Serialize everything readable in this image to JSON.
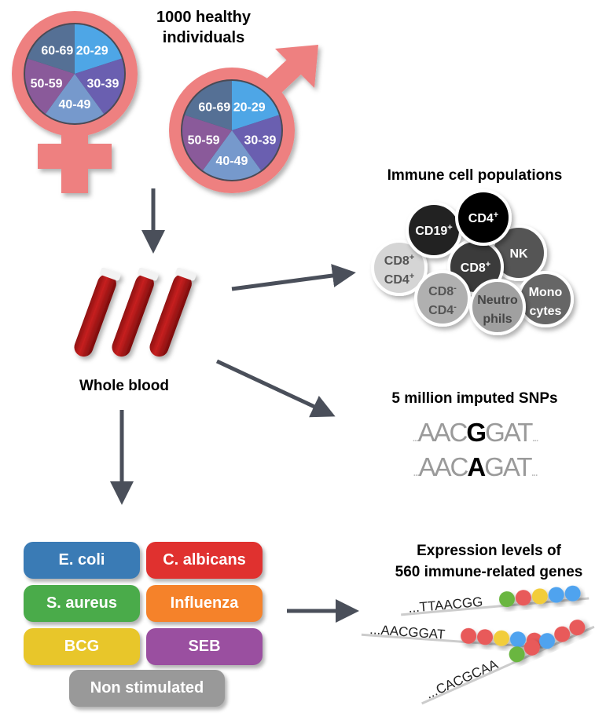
{
  "cohort": {
    "title_line1": "1000 healthy",
    "title_line2": "individuals",
    "age_groups": [
      "20-29",
      "30-39",
      "40-49",
      "50-59",
      "60-69"
    ],
    "age_colors": [
      "#4EA6E6",
      "#6A5FB0",
      "#7699CC",
      "#8A5A9A",
      "#557095"
    ],
    "symbol_color": "#EE8080"
  },
  "sample": {
    "label": "Whole blood"
  },
  "immune": {
    "title": "Immune cell populations",
    "cells": [
      {
        "name": "CD19",
        "sup": "+",
        "color": "#222222",
        "text": "#ffffff"
      },
      {
        "name": "CD4",
        "sup": "+",
        "color": "#050505",
        "text": "#ffffff"
      },
      {
        "name": "NK",
        "sup": "",
        "color": "#555555",
        "text": "#ffffff"
      },
      {
        "name": "CD8",
        "sup": "+",
        "color": "#3a3a3a",
        "text": "#ffffff"
      },
      {
        "name": "CD8",
        "sup": "+",
        "name2": "CD4",
        "sup2": "+",
        "color": "#d5d5d5",
        "text": "#555555"
      },
      {
        "name": "Mono",
        "name2": "cytes",
        "color": "#666666",
        "text": "#ffffff"
      },
      {
        "name": "CD8",
        "sup": "-",
        "name2": "CD4",
        "sup2": "-",
        "color": "#b0b0b0",
        "text": "#555555"
      },
      {
        "name": "Neutro",
        "name2": "phils",
        "color": "#a0a0a0",
        "text": "#444444"
      }
    ]
  },
  "snps": {
    "title": "5 million imputed SNPs",
    "seq1": {
      "prefix": "AAC",
      "variant": "G",
      "suffix": "GAT"
    },
    "seq2": {
      "prefix": "AAC",
      "variant": "A",
      "suffix": "GAT"
    },
    "ellipsis": "..."
  },
  "stimuli": [
    {
      "label": "E. coli",
      "color": "#3a7bb5"
    },
    {
      "label": "C. albicans",
      "color": "#e0312f"
    },
    {
      "label": "S. aureus",
      "color": "#4aab4a"
    },
    {
      "label": "Influenza",
      "color": "#f5822a"
    },
    {
      "label": "BCG",
      "color": "#e8c62a"
    },
    {
      "label": "SEB",
      "color": "#9a4fa0"
    },
    {
      "label": "Non stimulated",
      "color": "#999999"
    }
  ],
  "expression": {
    "title_line1": "Expression levels of",
    "title_line2": "560 immune-related genes",
    "reads": [
      "...TTAACGG",
      "...AACGGAT",
      "...CACGCAA"
    ],
    "dot_colors": {
      "green": "#6ab640",
      "red": "#e85a5a",
      "yellow": "#f2cd3a",
      "blue": "#4fa3ef"
    }
  },
  "arrow_color": "#4a4f5a"
}
